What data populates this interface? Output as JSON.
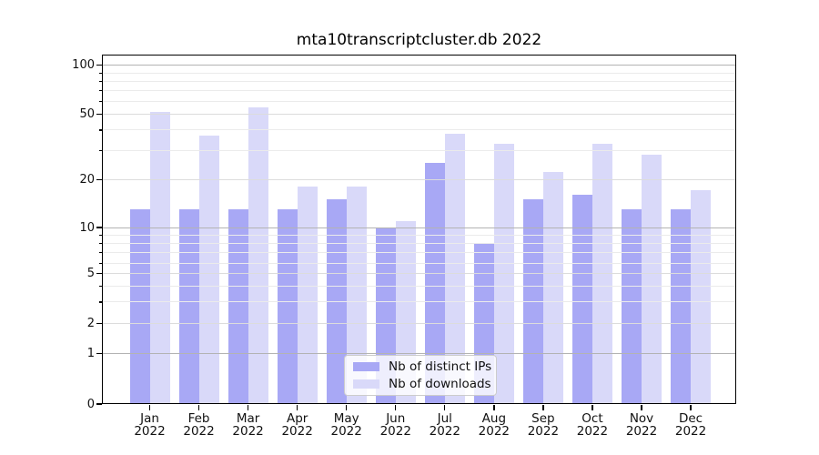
{
  "title": "mta10transcriptcluster.db 2022",
  "chart_data": {
    "type": "bar",
    "title": "mta10transcriptcluster.db 2022",
    "categories": [
      "Jan 2022",
      "Feb 2022",
      "Mar 2022",
      "Apr 2022",
      "May 2022",
      "Jun 2022",
      "Jul 2022",
      "Aug 2022",
      "Sep 2022",
      "Oct 2022",
      "Nov 2022",
      "Dec 2022"
    ],
    "series": [
      {
        "name": "Nb of distinct IPs",
        "color": "#a8a8f5",
        "values": [
          13,
          13,
          13,
          13,
          15,
          10,
          25,
          8,
          15,
          16,
          13,
          13
        ]
      },
      {
        "name": "Nb of downloads",
        "color": "#d9d9f9",
        "values": [
          52,
          37,
          55,
          18,
          18,
          11,
          38,
          33,
          22,
          33,
          28,
          17
        ]
      }
    ],
    "yscale": "symlog",
    "ylim": [
      0,
      120
    ],
    "xlabel": "",
    "ylabel": "",
    "y_tick_labels": [
      "100",
      "50",
      "20",
      "10",
      "5",
      "2",
      "1",
      "0"
    ],
    "grid": "horizontal major + minor, drawn above bars",
    "legend_position": "lower center"
  },
  "colors": {
    "major_grid": "#b3b3b3",
    "labeled_minor_grid": "#dcdcdc",
    "minor_grid": "#ebebeb",
    "spine": "#000000"
  }
}
